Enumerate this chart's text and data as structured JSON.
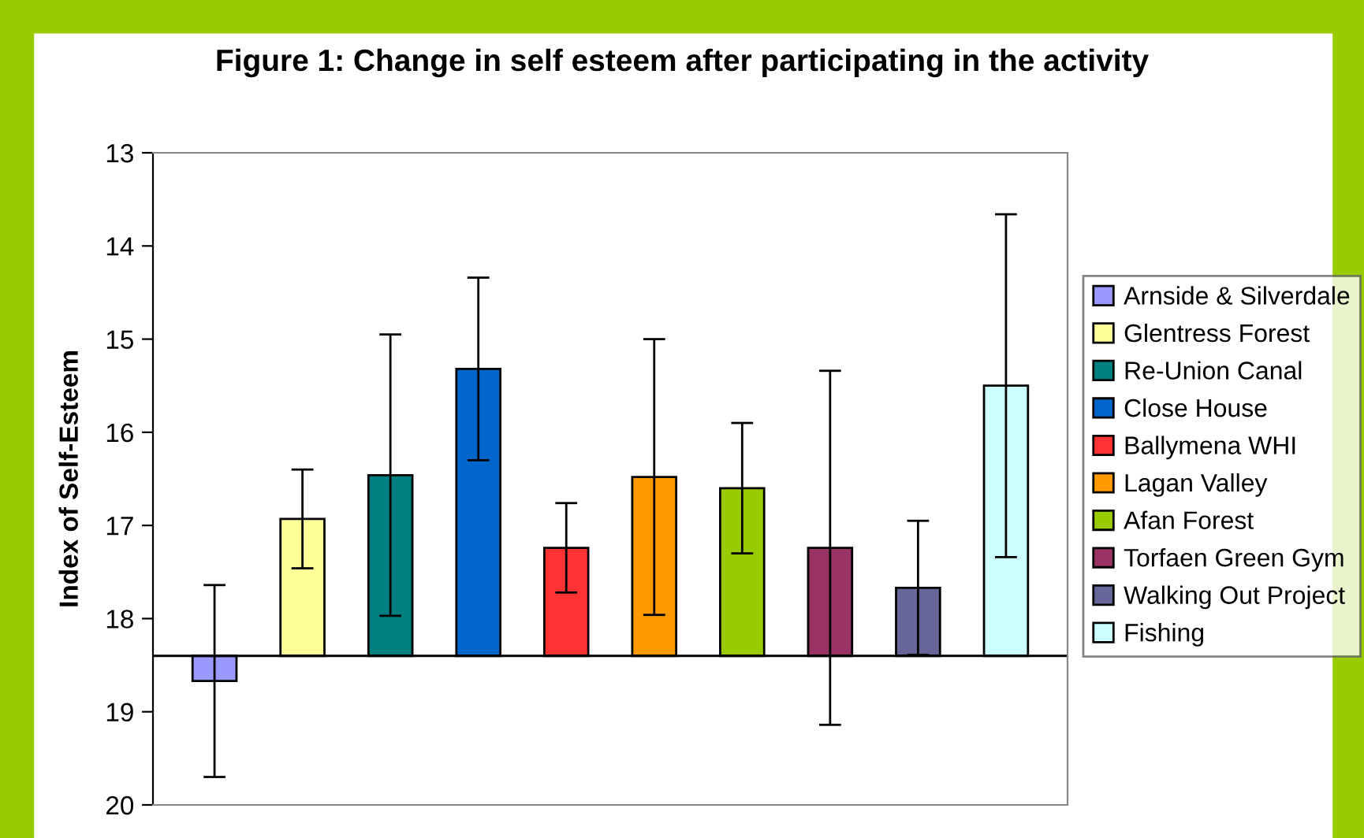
{
  "chart_data": {
    "type": "bar",
    "title": "Figure 1: Change in self esteem after participating in the activity",
    "ylabel": "Index of Self-Esteem",
    "categories": [
      null
    ],
    "ylim": [
      20,
      13
    ],
    "yticks": [
      13,
      14,
      15,
      16,
      17,
      18,
      19,
      20
    ],
    "grid": false,
    "legend": "right",
    "tick_labels": "y",
    "ref_lines": [
      {
        "axis": "y",
        "value": 18.4,
        "color": "#000000"
      }
    ],
    "series": [
      {
        "name": "Arnside & Silverdale",
        "color": "#9999ff",
        "base": [
          18.4
        ],
        "values": [
          0.27
        ],
        "errors": [
          1.03
        ]
      },
      {
        "name": "Glentress Forest",
        "color": "#ffff99",
        "base": [
          18.4
        ],
        "values": [
          -1.47
        ],
        "errors": [
          0.53
        ]
      },
      {
        "name": "Re-Union Canal",
        "color": "#008080",
        "base": [
          18.4
        ],
        "values": [
          -1.94
        ],
        "errors": [
          1.51
        ]
      },
      {
        "name": "Close House",
        "color": "#0066cc",
        "base": [
          18.4
        ],
        "values": [
          -3.08
        ],
        "errors": [
          0.98
        ]
      },
      {
        "name": "Ballymena WHI",
        "color": "#ff3333",
        "base": [
          18.4
        ],
        "values": [
          -1.16
        ],
        "errors": [
          0.48
        ]
      },
      {
        "name": "Lagan Valley",
        "color": "#ff9900",
        "base": [
          18.4
        ],
        "values": [
          -1.92
        ],
        "errors": [
          1.48
        ]
      },
      {
        "name": "Afan Forest",
        "color": "#99cc00",
        "base": [
          18.4
        ],
        "values": [
          -1.8
        ],
        "errors": [
          0.7
        ]
      },
      {
        "name": "Torfaen Green Gym",
        "color": "#993366",
        "base": [
          18.4
        ],
        "values": [
          -1.16
        ],
        "errors": [
          1.9
        ]
      },
      {
        "name": "Walking Out Project",
        "color": "#666699",
        "base": [
          18.4
        ],
        "values": [
          -0.73
        ],
        "errors": [
          0.72
        ]
      },
      {
        "name": "Fishing",
        "color": "#ccffff",
        "base": [
          18.4
        ],
        "values": [
          -2.9
        ],
        "errors": [
          1.84
        ]
      }
    ]
  }
}
